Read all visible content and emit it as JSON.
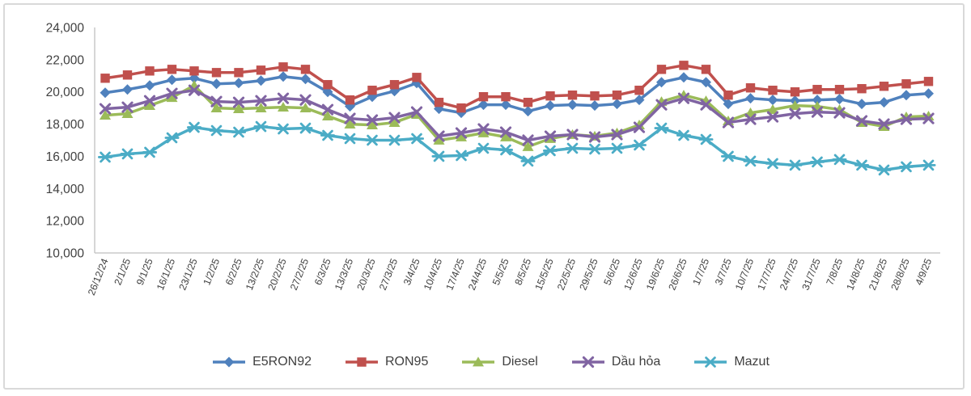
{
  "chart": {
    "background": "#ffffff",
    "frame_border_color": "#d9d9d9",
    "axis_line_color": "#bfbfbf",
    "text_color": "#404040"
  },
  "chart_data": {
    "type": "line",
    "title": "",
    "xlabel": "",
    "ylabel": "",
    "grid": "off",
    "y_axis": {
      "min": 10000,
      "max": 24000,
      "step": 2000,
      "tick_labels": [
        "10,000",
        "12,000",
        "14,000",
        "16,000",
        "18,000",
        "20,000",
        "22,000",
        "24,000"
      ]
    },
    "x_axis": {
      "label_rotation_deg": -68
    },
    "legend": {
      "position": "bottom"
    },
    "categories": [
      "26/12/24",
      "2/1/25",
      "9/1/25",
      "16/1/25",
      "23/1/25",
      "1/2/25",
      "6/2/25",
      "13/2/25",
      "20/2/25",
      "27/2/25",
      "6/3/25",
      "13/3/25",
      "20/3/25",
      "27/3/25",
      "3/4/25",
      "10/4/25",
      "17/4/25",
      "24/4/25",
      "5/5/25",
      "8/5/25",
      "15/5/25",
      "22/5/25",
      "29/5/25",
      "5/6/25",
      "12/6/25",
      "19/6/25",
      "26/6/25",
      "1/7/25",
      "3/7/25",
      "10/7/25",
      "17/7/25",
      "24/7/25",
      "31/7/25",
      "7/8/25",
      "14/8/25",
      "21/8/25",
      "28/8/25",
      "4/9/25"
    ],
    "series": [
      {
        "name": "E5RON92",
        "color": "#4F81BD",
        "marker": "diamond",
        "values": [
          19950,
          20150,
          20400,
          20750,
          20850,
          20500,
          20550,
          20700,
          20950,
          20800,
          20000,
          19100,
          19700,
          20050,
          20550,
          18950,
          18700,
          19200,
          19200,
          18800,
          19150,
          19200,
          19150,
          19250,
          19500,
          20600,
          20900,
          20600,
          19250,
          19600,
          19500,
          19450,
          19500,
          19550,
          19250,
          19350,
          19800,
          19900
        ]
      },
      {
        "name": "RON95",
        "color": "#C0504D",
        "marker": "square",
        "values": [
          20850,
          21050,
          21300,
          21400,
          21300,
          21200,
          21200,
          21350,
          21550,
          21400,
          20450,
          19500,
          20100,
          20450,
          20900,
          19350,
          19000,
          19700,
          19700,
          19350,
          19750,
          19800,
          19750,
          19800,
          20100,
          21400,
          21650,
          21400,
          19800,
          20250,
          20100,
          20000,
          20150,
          20150,
          20200,
          20350,
          20500,
          20650
        ]
      },
      {
        "name": "Diesel",
        "color": "#9BBB59",
        "marker": "triangle",
        "values": [
          18550,
          18650,
          19150,
          19650,
          20400,
          19000,
          18950,
          19000,
          19050,
          19000,
          18500,
          18000,
          17950,
          18100,
          18600,
          17000,
          17200,
          17450,
          17200,
          16600,
          17100,
          17350,
          17250,
          17450,
          17950,
          19400,
          19800,
          19450,
          18200,
          18700,
          18900,
          19150,
          19100,
          18900,
          18100,
          17850,
          18450,
          18500
        ]
      },
      {
        "name": "Dầu hỏa",
        "color": "#8064A2",
        "marker": "x",
        "values": [
          18950,
          19050,
          19450,
          19900,
          20100,
          19400,
          19350,
          19450,
          19600,
          19500,
          18900,
          18350,
          18250,
          18400,
          18750,
          17250,
          17450,
          17700,
          17500,
          17000,
          17250,
          17350,
          17200,
          17350,
          17800,
          19200,
          19600,
          19200,
          18100,
          18300,
          18450,
          18650,
          18750,
          18700,
          18200,
          18000,
          18300,
          18350
        ]
      },
      {
        "name": "Mazut",
        "color": "#4BACC6",
        "marker": "asterisk",
        "values": [
          15950,
          16150,
          16250,
          17150,
          17800,
          17600,
          17500,
          17850,
          17700,
          17750,
          17300,
          17100,
          17000,
          17000,
          17100,
          16000,
          16050,
          16500,
          16400,
          15700,
          16350,
          16500,
          16450,
          16500,
          16700,
          17750,
          17300,
          17050,
          16000,
          15700,
          15550,
          15450,
          15650,
          15800,
          15450,
          15150,
          15350,
          15450
        ]
      }
    ]
  }
}
